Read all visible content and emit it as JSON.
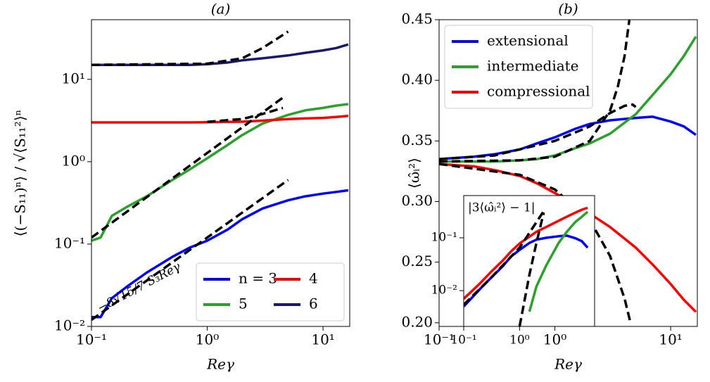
{
  "chart_data": [
    {
      "type": "line",
      "title": "(a)",
      "xlabel": "Reγ",
      "ylabel": "⟨(−S₁₁)ⁿ⟩ / √⟨S₁₁²⟩ⁿ",
      "xlog": true,
      "ylog": true,
      "xlim": [
        0.1,
        17
      ],
      "ylim": [
        0.01,
        53
      ],
      "xticks": [
        {
          "value": 0.1,
          "label": "10⁻¹"
        },
        {
          "value": 1,
          "label": "10⁰"
        },
        {
          "value": 10,
          "label": "10¹"
        }
      ],
      "yticks": [
        {
          "value": 0.01,
          "label": "10⁻²"
        },
        {
          "value": 0.1,
          "label": "10⁻¹"
        },
        {
          "value": 1,
          "label": "10⁰"
        },
        {
          "value": 10,
          "label": "10¹"
        }
      ],
      "legend": "lower right",
      "legend_columns": 2,
      "annotation": "−8√15/7 S₃Reγ",
      "x": [
        0.1,
        0.12,
        0.15,
        0.2,
        0.3,
        0.5,
        0.7,
        1,
        1.5,
        2,
        3,
        5,
        7,
        10,
        13,
        16.5
      ],
      "series": [
        {
          "name": "n = 3",
          "color": "#0000ff",
          "values": [
            0.013,
            0.013,
            0.022,
            0.03,
            0.045,
            0.07,
            0.09,
            0.11,
            0.15,
            0.2,
            0.27,
            0.34,
            0.38,
            0.41,
            0.43,
            0.45
          ]
        },
        {
          "name": "5",
          "color": "#2ca02c",
          "values": [
            0.11,
            0.12,
            0.22,
            0.28,
            0.38,
            0.6,
            0.8,
            1.1,
            1.6,
            2.1,
            2.9,
            3.7,
            4.2,
            4.5,
            4.8,
            5.0
          ]
        },
        {
          "name": "4",
          "color": "#ff0000",
          "values": [
            3.0,
            3.0,
            3.0,
            3.0,
            3.0,
            3.0,
            3.0,
            3.02,
            3.04,
            3.06,
            3.15,
            3.3,
            3.35,
            3.4,
            3.5,
            3.6
          ]
        },
        {
          "name": "6",
          "color": "#191970",
          "values": [
            15,
            15,
            15,
            15,
            15,
            15,
            15,
            15.3,
            16,
            17,
            18,
            19.5,
            21,
            22.5,
            24,
            26.5
          ]
        }
      ],
      "reference_color": "#000000",
      "reference_lines": [
        {
          "x": [
            0.1,
            5
          ],
          "values": [
            0.012,
            0.6
          ]
        },
        {
          "x": [
            0.1,
            4.5
          ],
          "values": [
            0.12,
            6
          ]
        },
        {
          "x": [
            1,
            2,
            3,
            4.5
          ],
          "values": [
            3.05,
            3.3,
            3.8,
            4.5
          ]
        },
        {
          "x": [
            0.1,
            1,
            2,
            3,
            5
          ],
          "values": [
            15,
            15.5,
            18,
            24,
            38
          ]
        }
      ]
    },
    {
      "type": "line",
      "title": "(b)",
      "xlabel": "Reγ",
      "ylabel": "⟨ω̂ᵢ²⟩",
      "xlog": true,
      "ylog": false,
      "xlim": [
        0.1,
        17
      ],
      "ylim": [
        0.197,
        0.45
      ],
      "xticks": [
        {
          "value": 0.1,
          "label": "10⁻¹"
        },
        {
          "value": 1,
          "label": "10⁰"
        },
        {
          "value": 10,
          "label": "10¹"
        }
      ],
      "yticks": [
        {
          "value": 0.2,
          "label": "0.20"
        },
        0.25,
        {
          "value": 0.3,
          "label": "0.30"
        },
        0.35,
        {
          "value": 0.4,
          "label": "0.40"
        },
        0.45
      ],
      "legend": "upper left",
      "legend_columns": 1,
      "x": [
        0.1,
        0.2,
        0.3,
        0.5,
        0.7,
        1,
        1.5,
        2,
        3,
        5,
        7,
        10,
        13,
        16.5
      ],
      "series": [
        {
          "name": "extensional",
          "color": "#0000ff",
          "values": [
            0.335,
            0.337,
            0.339,
            0.343,
            0.348,
            0.353,
            0.36,
            0.364,
            0.367,
            0.369,
            0.37,
            0.366,
            0.362,
            0.355
          ]
        },
        {
          "name": "intermediate",
          "color": "#2ca02c",
          "values": [
            0.333,
            0.333,
            0.333,
            0.334,
            0.335,
            0.338,
            0.344,
            0.348,
            0.356,
            0.372,
            0.388,
            0.405,
            0.42,
            0.436
          ]
        },
        {
          "name": "compressional",
          "color": "#ff0000",
          "values": [
            0.331,
            0.329,
            0.326,
            0.321,
            0.315,
            0.307,
            0.298,
            0.29,
            0.279,
            0.262,
            0.248,
            0.232,
            0.219,
            0.209
          ]
        }
      ],
      "reference_color": "#000000",
      "reference_lines": [
        {
          "x": [
            0.1,
            0.3,
            1,
            2,
            3,
            4,
            4.7,
            5
          ],
          "values": [
            0.335,
            0.338,
            0.35,
            0.362,
            0.373,
            0.379,
            0.38,
            0.378
          ]
        },
        {
          "x": [
            0.1,
            0.5,
            1,
            2,
            3,
            3.5,
            4,
            4.4
          ],
          "values": [
            0.333,
            0.334,
            0.337,
            0.35,
            0.375,
            0.395,
            0.42,
            0.45
          ]
        },
        {
          "x": [
            0.1,
            0.5,
            1,
            2,
            3,
            4,
            4.5
          ],
          "values": [
            0.331,
            0.322,
            0.31,
            0.285,
            0.255,
            0.22,
            0.2
          ]
        }
      ]
    },
    {
      "type": "line",
      "title": "|3⟨ω̂ᵢ²⟩ − 1|",
      "xlog": true,
      "ylog": true,
      "xlim": [
        0.1,
        22
      ],
      "ylim": [
        0.0021,
        0.63
      ],
      "xticks": [
        {
          "value": 0.1,
          "label": "10⁻¹"
        },
        {
          "value": 1,
          "label": "10⁰"
        }
      ],
      "yticks": [
        {
          "value": 0.01,
          "label": "10⁻²"
        },
        {
          "value": 0.1,
          "label": "10⁻¹"
        }
      ],
      "x": [
        0.1,
        0.2,
        0.3,
        0.5,
        0.7,
        1,
        1.5,
        2,
        3,
        5,
        7,
        10,
        13,
        16.5
      ],
      "series": [
        {
          "color": "#0000ff",
          "values": [
            0.005,
            0.011,
            0.017,
            0.029,
            0.044,
            0.059,
            0.08,
            0.092,
            0.1,
            0.107,
            0.11,
            0.098,
            0.086,
            0.065
          ]
        },
        {
          "color": "#2ca02c",
          "values": [
            null,
            null,
            null,
            null,
            null,
            null,
            0.004,
            0.012,
            0.03,
            0.08,
            0.13,
            0.2,
            0.25,
            0.31
          ]
        },
        {
          "color": "#ff0000",
          "values": [
            0.007,
            0.014,
            0.022,
            0.037,
            0.055,
            0.078,
            0.105,
            0.13,
            0.16,
            0.21,
            0.25,
            0.3,
            0.34,
            0.37
          ]
        }
      ],
      "reference_color": "#000000",
      "reference_lines": [
        {
          "x": [
            0.1,
            0.3,
            1,
            2.7
          ],
          "values": [
            0.0054,
            0.017,
            0.065,
            0.32
          ]
        },
        {
          "x": [
            1,
            1.5,
            2,
            2.7
          ],
          "values": [
            0.0021,
            0.02,
            0.08,
            0.3
          ]
        }
      ]
    }
  ]
}
